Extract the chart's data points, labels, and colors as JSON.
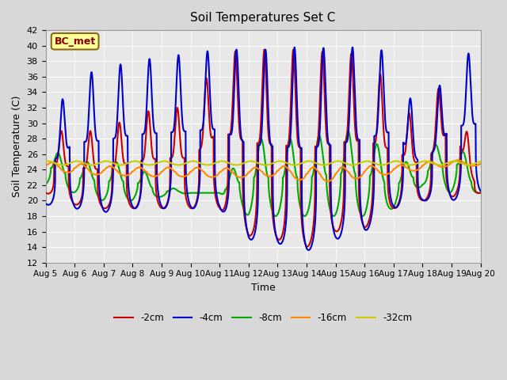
{
  "title": "Soil Temperatures Set C",
  "xlabel": "Time",
  "ylabel": "Soil Temperature (C)",
  "ylim": [
    12,
    42
  ],
  "yticks": [
    12,
    14,
    16,
    18,
    20,
    22,
    24,
    26,
    28,
    30,
    32,
    34,
    36,
    38,
    40,
    42
  ],
  "xtick_labels": [
    "Aug 5",
    "Aug 6",
    "Aug 7",
    "Aug 8",
    "Aug 9",
    "Aug 10",
    "Aug 11",
    "Aug 12",
    "Aug 13",
    "Aug 14",
    "Aug 15",
    "Aug 16",
    "Aug 17",
    "Aug 18",
    "Aug 19",
    "Aug 20"
  ],
  "legend_labels": [
    "-2cm",
    "-4cm",
    "-8cm",
    "-16cm",
    "-32cm"
  ],
  "legend_colors": [
    "#cc0000",
    "#0000cc",
    "#00aa00",
    "#ff8800",
    "#cccc00"
  ],
  "annotation_text": "BC_met",
  "bg_color": "#e8e8e8",
  "line_width": 1.5
}
